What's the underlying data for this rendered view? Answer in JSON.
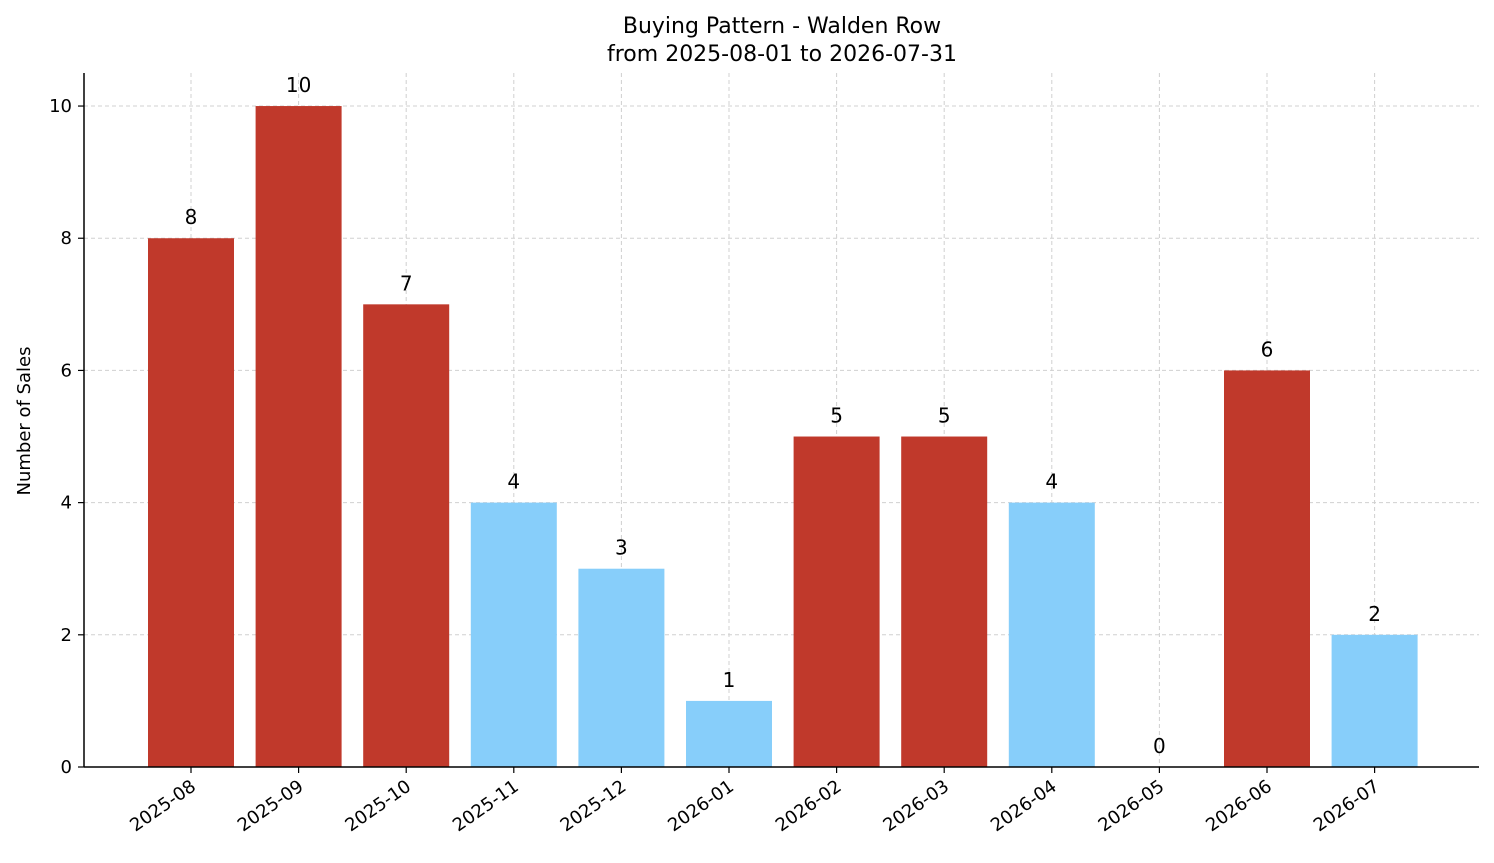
{
  "chart_data": {
    "type": "bar",
    "title": "Buying Pattern - Walden Row",
    "subtitle": "from 2025-08-01 to 2026-07-31",
    "xlabel": "",
    "ylabel": "Number of Sales",
    "categories": [
      "2025-08",
      "2025-09",
      "2025-10",
      "2025-11",
      "2025-12",
      "2026-01",
      "2026-02",
      "2026-03",
      "2026-04",
      "2026-05",
      "2026-06",
      "2026-07"
    ],
    "values": [
      8,
      10,
      7,
      4,
      3,
      1,
      5,
      5,
      4,
      0,
      6,
      2
    ],
    "bar_colors": [
      "#c0392b",
      "#c0392b",
      "#c0392b",
      "#87cefa",
      "#87cefa",
      "#87cefa",
      "#c0392b",
      "#c0392b",
      "#87cefa",
      "#87cefa",
      "#c0392b",
      "#87cefa"
    ],
    "ylim": [
      0,
      10.5
    ],
    "yticks": [
      0,
      2,
      4,
      6,
      8,
      10
    ],
    "grid": true,
    "data_labels": true
  }
}
